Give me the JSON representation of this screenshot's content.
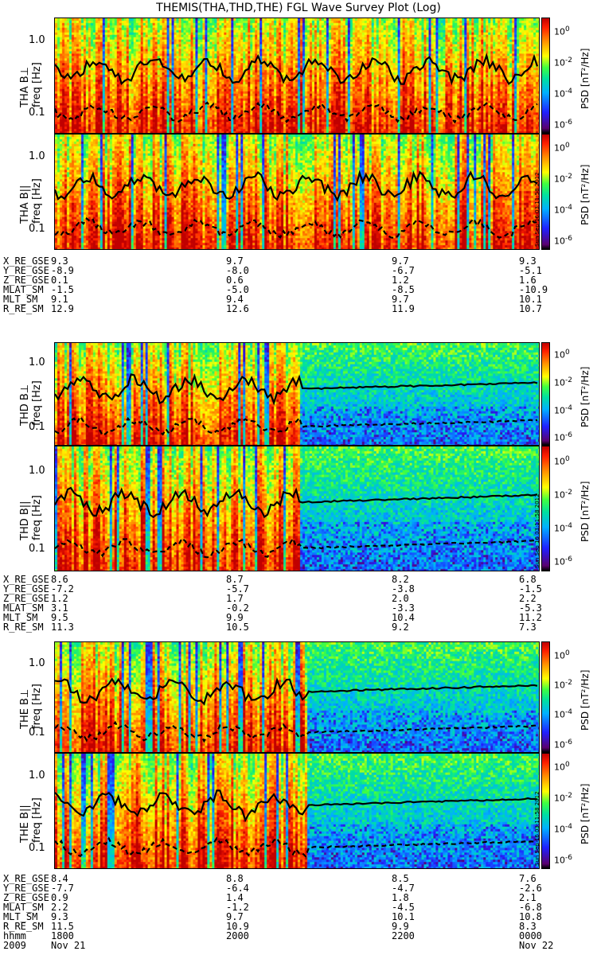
{
  "chart_data": {
    "type": "heatmap",
    "title": "THEMIS(THA,THD,THE) FGL Wave Survey Plot (Log)",
    "ylabel_common": "freq [Hz]",
    "yticks": [
      "1.0",
      "0.1"
    ],
    "colorbar": {
      "label": "PSD [nT²/Hz]",
      "ticks": [
        {
          "base": "10",
          "exp": "0"
        },
        {
          "base": "10",
          "exp": "-2"
        },
        {
          "base": "10",
          "exp": "-4"
        },
        {
          "base": "10",
          "exp": "-6"
        }
      ],
      "range_log10": [
        -6.5,
        1.0
      ]
    },
    "stamp": "Sun Sep 16 03:11:58 2012",
    "panels": [
      {
        "probe": "THA",
        "component": "B⊥"
      },
      {
        "probe": "THA",
        "component": "B||"
      },
      {
        "probe": "THD",
        "component": "B⊥"
      },
      {
        "probe": "THD",
        "component": "B||"
      },
      {
        "probe": "THE",
        "component": "B⊥"
      },
      {
        "probe": "THE",
        "component": "B||"
      }
    ]
  },
  "ephemeris_labels": [
    "X_RE_GSE",
    "Y_RE_GSE",
    "Z_RE_GSE",
    "MLAT_SM",
    "MLT_SM",
    "R_RE_SM"
  ],
  "ephemeris": [
    {
      "probe": "THA",
      "cols": [
        [
          "9.3",
          "-8.9",
          "0.1",
          "-1.5",
          "9.1",
          "12.9"
        ],
        [
          "9.7",
          "-8.0",
          "0.6",
          "-5.0",
          "9.4",
          "12.6"
        ],
        [
          "9.7",
          "-6.7",
          "1.2",
          "-8.5",
          "9.7",
          "11.9"
        ],
        [
          "9.3",
          "-5.1",
          "1.6",
          "-10.9",
          "10.1",
          "10.7"
        ]
      ]
    },
    {
      "probe": "THD",
      "cols": [
        [
          "8.6",
          "-7.2",
          "1.2",
          "3.1",
          "9.5",
          "11.3"
        ],
        [
          "8.7",
          "-5.7",
          "1.7",
          "-0.2",
          "9.9",
          "10.5"
        ],
        [
          "8.2",
          "-3.8",
          "2.0",
          "-3.3",
          "10.4",
          "9.2"
        ],
        [
          "6.8",
          "-1.5",
          "2.2",
          "-5.3",
          "11.2",
          "7.3"
        ]
      ]
    },
    {
      "probe": "THE",
      "cols": [
        [
          "8.4",
          "-7.7",
          "0.9",
          "2.2",
          "9.3",
          "11.5"
        ],
        [
          "8.8",
          "-6.4",
          "1.4",
          "-1.2",
          "9.7",
          "10.9"
        ],
        [
          "8.5",
          "-4.7",
          "1.8",
          "-4.5",
          "10.1",
          "9.9"
        ],
        [
          "7.6",
          "-2.6",
          "2.1",
          "-6.8",
          "10.8",
          "8.3"
        ]
      ]
    }
  ],
  "time_axis": {
    "hhmm_label": "hhmm",
    "ticks": [
      "1800",
      "2000",
      "2200",
      "0000"
    ],
    "year": "2009",
    "date_start": "Nov 21",
    "date_end": "Nov 22"
  }
}
